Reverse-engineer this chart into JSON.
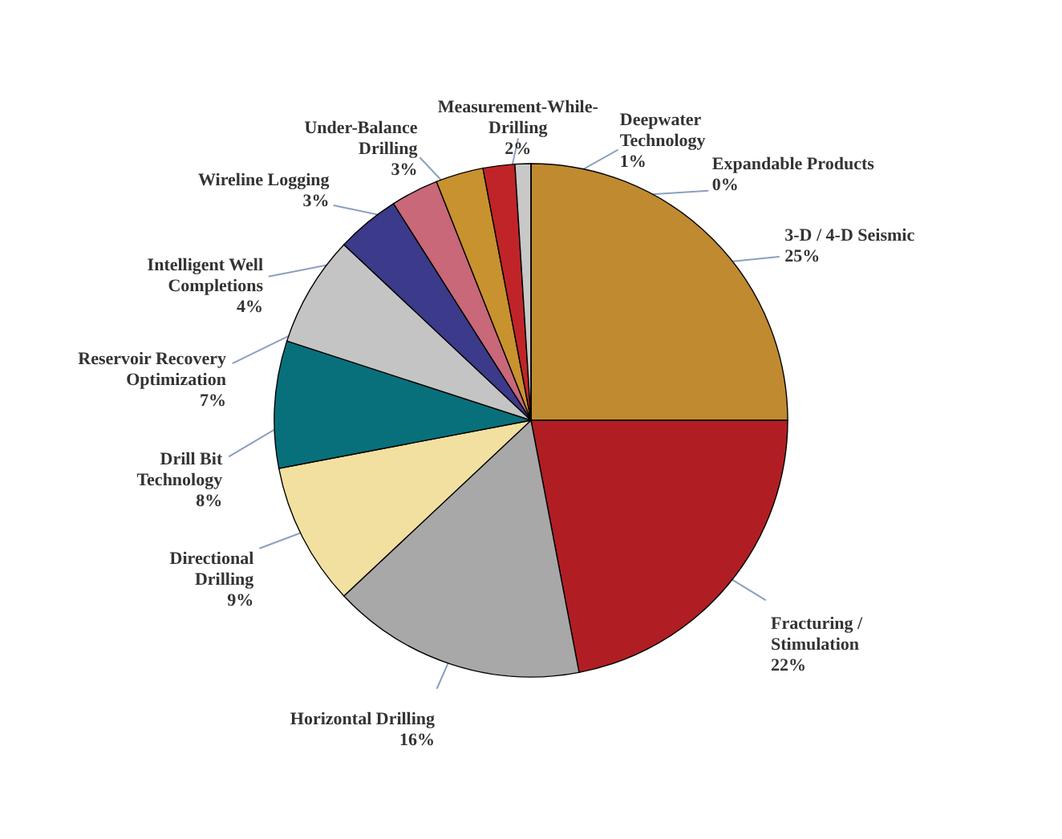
{
  "chart_data": {
    "type": "pie",
    "categories": [
      "3-D / 4-D Seismic",
      "Fracturing / Stimulation",
      "Horizontal Drilling",
      "Directional Drilling",
      "Drill Bit Technology",
      "Reservoir Recovery Optimization",
      "Intelligent Well Completions",
      "Wireline Logging",
      "Under-Balance Drilling",
      "Measurement-While-Drilling",
      "Deepwater Technology",
      "Expandable Products"
    ],
    "values": [
      25,
      22,
      16,
      9,
      8,
      7,
      4,
      3,
      3,
      2,
      1,
      0
    ],
    "value_labels": [
      "25%",
      "22%",
      "16%",
      "9%",
      "8%",
      "7%",
      "4%",
      "3%",
      "3%",
      "2%",
      "1%",
      "0%"
    ],
    "colors": [
      "#c08a30",
      "#b01e24",
      "#a8a8a8",
      "#f2e0a0",
      "#08707a",
      "#c4c4c4",
      "#3c3a8a",
      "#c86878",
      "#c8922e",
      "#c02428",
      "#c8c8c8",
      "#e8e8e8"
    ]
  }
}
